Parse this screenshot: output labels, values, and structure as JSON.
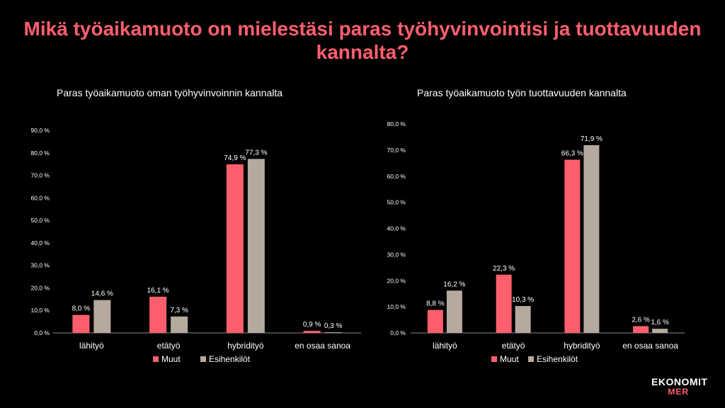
{
  "page": {
    "title": "Mikä työaikamuoto on mielestäsi paras työhyvinvointisi ja tuottavuuden kannalta?"
  },
  "colors": {
    "accent": "#ff5f6d",
    "series_muut": "#ff5f6d",
    "series_esihenkilot": "#b5aa9d",
    "background": "#000000",
    "text": "#ffffff"
  },
  "logo": {
    "line1": "EKONOMIT",
    "line2": "MER"
  },
  "chart_data": [
    {
      "type": "bar",
      "title": "Paras työaikamuoto oman työhyvinvoinnin kannalta",
      "categories": [
        "lähityö",
        "etätyö",
        "hybridityö",
        "en osaa sanoa"
      ],
      "series": [
        {
          "name": "Muut",
          "values": [
            8.0,
            16.1,
            74.9,
            0.9
          ],
          "labels": [
            "8,0 %",
            "16,1 %",
            "74,9 %",
            "0,9 %"
          ]
        },
        {
          "name": "Esihenkilöt",
          "values": [
            14.6,
            7.3,
            77.3,
            0.3
          ],
          "labels": [
            "14,6 %",
            "7,3 %",
            "77,3 %",
            "0,3 %"
          ]
        }
      ],
      "ylim": [
        0,
        90
      ],
      "yticks": [
        "0,0 %",
        "10,0 %",
        "20,0 %",
        "30,0 %",
        "40,0 %",
        "50,0 %",
        "60,0 %",
        "70,0 %",
        "80,0 %",
        "90,0 %"
      ],
      "legend": "bottom",
      "grid": false
    },
    {
      "type": "bar",
      "title": "Paras työaikamuoto työn tuottavuuden kannalta",
      "categories": [
        "lähityö",
        "etätyö",
        "hybridityö",
        "en osaa sanoa"
      ],
      "series": [
        {
          "name": "Muut",
          "values": [
            8.8,
            22.3,
            66.3,
            2.6
          ],
          "labels": [
            "8,8 %",
            "22,3 %",
            "66,3 %",
            "2,6 %"
          ]
        },
        {
          "name": "Esihenkilöt",
          "values": [
            16.2,
            10.3,
            71.9,
            1.6
          ],
          "labels": [
            "16,2 %",
            "10,3 %",
            "71,9 %",
            "1,6 %"
          ]
        }
      ],
      "ylim": [
        0,
        80
      ],
      "yticks": [
        "0,0 %",
        "10,0 %",
        "20,0 %",
        "30,0 %",
        "40,0 %",
        "50,0 %",
        "60,0 %",
        "70,0 %",
        "80,0 %"
      ],
      "legend": "bottom",
      "grid": false
    }
  ]
}
